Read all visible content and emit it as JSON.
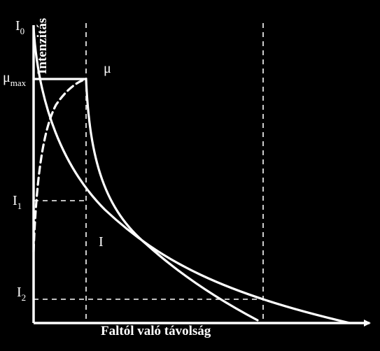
{
  "axes": {
    "y_title": "Intenzitás",
    "x_title": "Faltól való távolság"
  },
  "labels": {
    "i0_main": "I",
    "i0_sub": "0",
    "mu_max_main": "μ",
    "mu_max_sub": "max",
    "mu": "μ",
    "i1_main": "I",
    "i1_sub": "1",
    "i2_main": "I",
    "i2_sub": "2",
    "i_curve": "I"
  },
  "colors": {
    "background": "#000000",
    "foreground": "#ffffff"
  }
}
